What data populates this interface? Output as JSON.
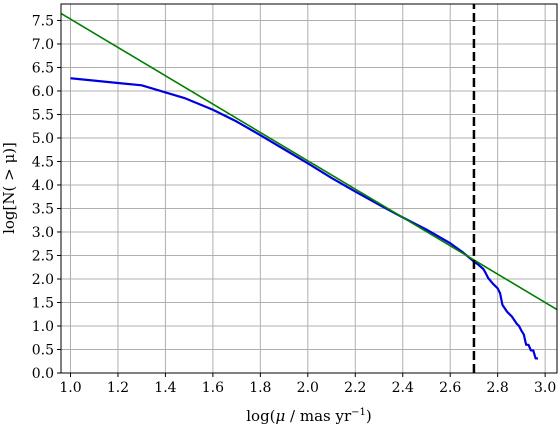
{
  "chart_data": {
    "type": "line",
    "xlabel_main": "log(",
    "xlabel_mu": "μ",
    "xlabel_unit": " / mas yr",
    "xlabel_exp": "−1",
    "xlabel_close": ")",
    "ylabel": "log[N( > μ)]",
    "xlim": [
      0.96,
      3.05
    ],
    "ylim": [
      0.0,
      7.85
    ],
    "x_ticks": [
      "1.0",
      "1.2",
      "1.4",
      "1.6",
      "1.8",
      "2.0",
      "2.2",
      "2.4",
      "2.6",
      "2.8",
      "3.0"
    ],
    "y_ticks": [
      "0.0",
      "0.5",
      "1.0",
      "1.5",
      "2.0",
      "2.5",
      "3.0",
      "3.5",
      "4.0",
      "4.5",
      "5.0",
      "5.5",
      "6.0",
      "6.5",
      "7.0",
      "7.5"
    ],
    "grid": true,
    "series": [
      {
        "style": "solid",
        "color": "#0000e0",
        "x": [
          1.0,
          1.3,
          1.48,
          1.6,
          1.7,
          1.8,
          1.9,
          2.0,
          2.1,
          2.2,
          2.3,
          2.4,
          2.5,
          2.6,
          2.65,
          2.7,
          2.72,
          2.74,
          2.75,
          2.76,
          2.78,
          2.8,
          2.81,
          2.82,
          2.84,
          2.86,
          2.88,
          2.89,
          2.9,
          2.91,
          2.92,
          2.93,
          2.94,
          2.95,
          2.96,
          2.97
        ],
        "y": [
          6.27,
          6.12,
          5.85,
          5.6,
          5.35,
          5.06,
          4.76,
          4.46,
          4.15,
          3.86,
          3.58,
          3.31,
          3.05,
          2.76,
          2.58,
          2.37,
          2.3,
          2.21,
          2.12,
          2.02,
          1.9,
          1.8,
          1.7,
          1.45,
          1.3,
          1.2,
          1.05,
          1.0,
          0.9,
          0.82,
          0.6,
          0.6,
          0.48,
          0.48,
          0.31,
          0.31
        ]
      },
      {
        "style": "solid",
        "color": "#008000",
        "x": [
          0.96,
          3.05
        ],
        "y": [
          7.65,
          1.35
        ]
      },
      {
        "style": "dashed",
        "color": "#000000",
        "x": [
          2.7,
          2.7
        ],
        "y": [
          0.0,
          7.85
        ]
      }
    ]
  }
}
